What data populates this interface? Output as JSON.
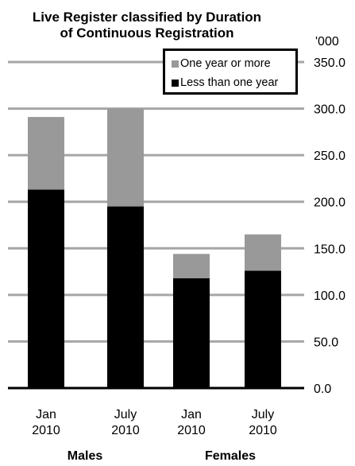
{
  "chart_data": {
    "type": "bar",
    "stacked": true,
    "title": "Live Register classified by Duration of Continuous Registration",
    "title_lines": [
      "Live Register classified by Duration",
      "of Continuous Registration"
    ],
    "unit_label": "'000",
    "categories": [
      {
        "lines": [
          "Jan",
          "2010"
        ]
      },
      {
        "lines": [
          "July",
          "2010"
        ]
      },
      {
        "lines": [
          "Jan",
          "2010"
        ]
      },
      {
        "lines": [
          "July",
          "2010"
        ]
      }
    ],
    "groups": [
      "Males",
      "Females"
    ],
    "series": [
      {
        "name": "Less than one year",
        "color": "#000000",
        "values": [
          213,
          195,
          118,
          126
        ]
      },
      {
        "name": "One year or more",
        "color": "#999999",
        "values": [
          78,
          105,
          26,
          39
        ]
      }
    ],
    "ylim": [
      0,
      350
    ],
    "yticks": [
      0,
      50,
      100,
      150,
      200,
      250,
      300,
      350
    ],
    "ytick_labels": [
      "0.0",
      "50.0",
      "100.0",
      "150.0",
      "200.0",
      "250.0",
      "300.0",
      "350.0"
    ],
    "grid": true,
    "gridline_color": "#a6a6a6",
    "legend_position": "top-right"
  }
}
